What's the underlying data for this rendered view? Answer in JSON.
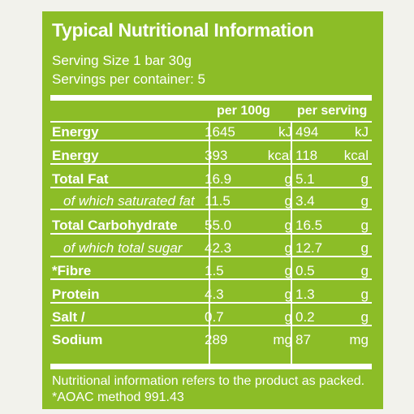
{
  "panel": {
    "title": "Typical Nutritional Information",
    "serving_size": "Serving Size 1 bar 30g",
    "servings_per_container": "Servings per container: 5",
    "col_per100": "per 100g",
    "col_perserving": "per serving"
  },
  "rows": [
    {
      "label": "Energy",
      "v100": "1645",
      "u100": "kJ",
      "vser": "494",
      "user": "kJ"
    },
    {
      "label": "Energy",
      "v100": "393",
      "u100": "kcal",
      "vser": "118",
      "user": "kcal"
    },
    {
      "label": "Total Fat",
      "v100": "16.9",
      "u100": "g",
      "vser": "5.1",
      "user": "g"
    },
    {
      "label": "of which saturated fat",
      "v100": "11.5",
      "u100": "g",
      "vser": "3.4",
      "user": "g"
    },
    {
      "label": "Total Carbohydrate",
      "v100": "55.0",
      "u100": "g",
      "vser": "16.5",
      "user": "g"
    },
    {
      "label": "of which total sugar",
      "v100": "42.3",
      "u100": "g",
      "vser": "12.7",
      "user": "g"
    },
    {
      "label": "*Fibre",
      "v100": "1.5",
      "u100": "g",
      "vser": "0.5",
      "user": "g"
    },
    {
      "label": "Protein",
      "v100": "4.3",
      "u100": "g",
      "vser": "1.3",
      "user": "g"
    },
    {
      "label": "Salt /",
      "v100": "0.7",
      "u100": "g",
      "vser": "0.2",
      "user": "g"
    },
    {
      "label": "Sodium",
      "v100": "289",
      "u100": "mg",
      "vser": "87",
      "user": "mg"
    }
  ],
  "footnote": "Nutritional information refers to the product as packed. *AOAC method 991.43"
}
